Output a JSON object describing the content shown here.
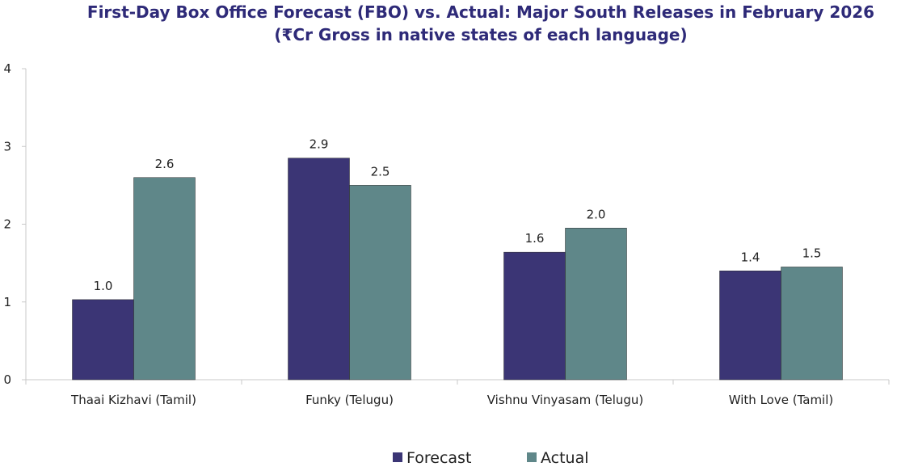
{
  "chart_data": {
    "type": "bar",
    "title": "First-Day Box Office Forecast (FBO) vs. Actual: Major South Releases in February 2026",
    "subtitle": "(₹Cr Gross in native states of each language)",
    "categories": [
      "Thaai Kizhavi (Tamil)",
      "Funky (Telugu)",
      "Vishnu Vinyasam (Telugu)",
      "With Love (Tamil)"
    ],
    "series": [
      {
        "name": "Forecast",
        "color": "#3b3575",
        "values": [
          1.03,
          2.85,
          1.64,
          1.4
        ],
        "labels": [
          "1.0",
          "2.9",
          "1.6",
          "1.4"
        ]
      },
      {
        "name": "Actual",
        "color": "#5f8789",
        "values": [
          2.6,
          2.5,
          1.95,
          1.45
        ],
        "labels": [
          "2.6",
          "2.5",
          "2.0",
          "1.5"
        ]
      }
    ],
    "ylim": [
      0,
      4
    ],
    "yticks": [
      0,
      1,
      2,
      3,
      4
    ],
    "xlabel": "",
    "ylabel": "",
    "legend": "bottom-center",
    "grid": false
  }
}
